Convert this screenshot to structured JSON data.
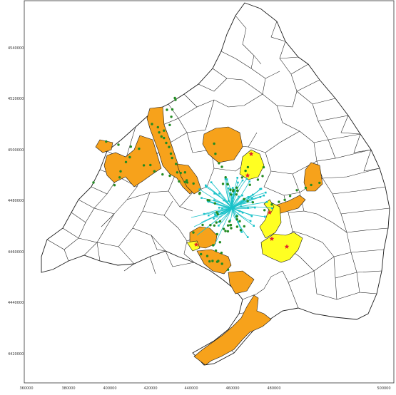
{
  "colors": {
    "background": "#ffffff",
    "municipality_stroke": "#1a1a1a",
    "orange_fill": "#f7a21b",
    "yellow_fill": "#ffff22",
    "green_points": "#228b22",
    "cyan_routes": "#19c2c9",
    "red_stars": "#e2232b"
  },
  "chart_data": {
    "type": "map",
    "x_ticks": [
      "360000",
      "380000",
      "400000",
      "420000",
      "440000",
      "460000",
      "480000",
      "500000"
    ],
    "y_ticks": [
      "4540000",
      "4520000",
      "4500000",
      "4480000",
      "4460000",
      "4440000",
      "4420000"
    ],
    "xlim": [
      360000,
      500000
    ],
    "ylim": [
      4408000,
      4558000
    ],
    "layers": [
      {
        "name": "orange-regions",
        "color": "#f7a21b"
      },
      {
        "name": "yellow-regions",
        "color": "#ffff22"
      },
      {
        "name": "green-points",
        "color": "#228b22"
      },
      {
        "name": "cyan-routes",
        "color": "#19c2c9"
      },
      {
        "name": "red-stars",
        "color": "#e2232b"
      }
    ]
  }
}
